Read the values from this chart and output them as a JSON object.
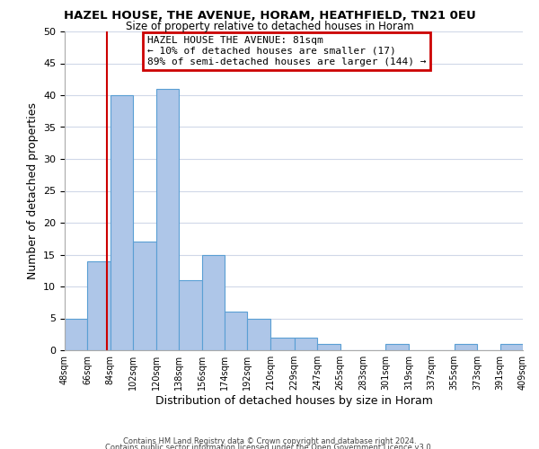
{
  "title": "HAZEL HOUSE, THE AVENUE, HORAM, HEATHFIELD, TN21 0EU",
  "subtitle": "Size of property relative to detached houses in Horam",
  "xlabel": "Distribution of detached houses by size in Horam",
  "ylabel": "Number of detached properties",
  "bar_color": "#aec6e8",
  "bar_edge_color": "#5a9fd4",
  "background_color": "#ffffff",
  "grid_color": "#d0d8e8",
  "bin_edges": [
    48,
    66,
    84,
    102,
    120,
    138,
    156,
    174,
    192,
    210,
    229,
    247,
    265,
    283,
    301,
    319,
    337,
    355,
    373,
    391,
    409
  ],
  "bin_labels": [
    "48sqm",
    "66sqm",
    "84sqm",
    "102sqm",
    "120sqm",
    "138sqm",
    "156sqm",
    "174sqm",
    "192sqm",
    "210sqm",
    "229sqm",
    "247sqm",
    "265sqm",
    "283sqm",
    "301sqm",
    "319sqm",
    "337sqm",
    "355sqm",
    "373sqm",
    "391sqm",
    "409sqm"
  ],
  "counts": [
    5,
    14,
    40,
    17,
    41,
    11,
    15,
    6,
    5,
    2,
    2,
    1,
    0,
    0,
    1,
    0,
    0,
    1,
    0,
    1
  ],
  "property_line_x": 81,
  "ylim": [
    0,
    50
  ],
  "annotation_title": "HAZEL HOUSE THE AVENUE: 81sqm",
  "annotation_line1": "← 10% of detached houses are smaller (17)",
  "annotation_line2": "89% of semi-detached houses are larger (144) →",
  "annotation_box_color": "#ffffff",
  "annotation_box_edge_color": "#cc0000",
  "property_line_color": "#cc0000",
  "footer_line1": "Contains HM Land Registry data © Crown copyright and database right 2024.",
  "footer_line2": "Contains public sector information licensed under the Open Government Licence v3.0."
}
